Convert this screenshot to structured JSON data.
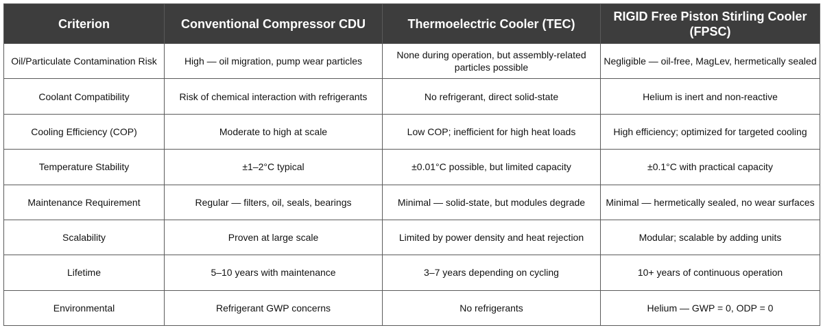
{
  "headers": [
    "Criterion",
    "Conventional Compressor CDU",
    "Thermoelectric Cooler (TEC)",
    "RIGID Free Piston Stirling Cooler (FPSC)"
  ],
  "rows": [
    [
      "Oil/Particulate Contamination Risk",
      "High — oil migration, pump wear particles",
      "None during operation, but assembly-related particles possible",
      "Negligible — oil-free, MagLev, hermetically sealed"
    ],
    [
      "Coolant Compatibility",
      "Risk of chemical interaction with refrigerants",
      "No refrigerant, direct solid-state",
      "Helium is inert and non-reactive"
    ],
    [
      "Cooling Efficiency (COP)",
      "Moderate to high at scale",
      "Low COP; inefficient for high heat loads",
      "High efficiency; optimized for targeted cooling"
    ],
    [
      "Temperature Stability",
      "±1–2°C typical",
      "±0.01°C possible, but limited capacity",
      "±0.1°C with practical capacity"
    ],
    [
      "Maintenance Requirement",
      "Regular — filters, oil, seals, bearings",
      "Minimal — solid-state, but modules degrade",
      "Minimal — hermetically sealed, no wear surfaces"
    ],
    [
      "Scalability",
      "Proven at large scale",
      "Limited by power density and heat rejection",
      "Modular; scalable by adding units"
    ],
    [
      "Lifetime",
      "5–10 years with maintenance",
      "3–7 years depending on cycling",
      "10+ years of continuous operation"
    ],
    [
      "Environmental",
      "Refrigerant GWP concerns",
      "No refrigerants",
      "Helium — GWP = 0, ODP = 0"
    ]
  ]
}
